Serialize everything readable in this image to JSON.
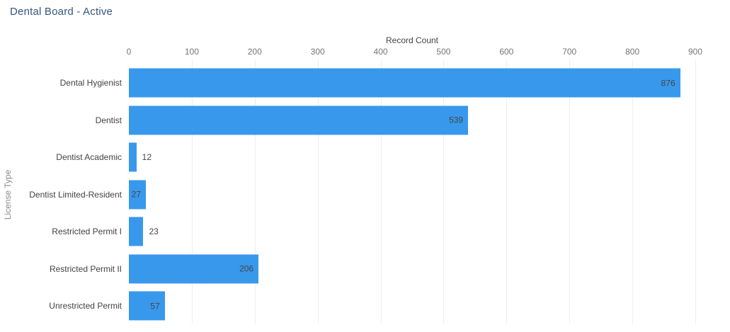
{
  "title": "Dental Board - Active",
  "chart_data": {
    "type": "bar",
    "orientation": "horizontal",
    "title": "Dental Board - Active",
    "xlabel": "Record Count",
    "ylabel": "License Type",
    "categories": [
      "Dental Hygienist",
      "Dentist",
      "Dentist Academic",
      "Dentist Limited-Resident",
      "Restricted Permit I",
      "Restricted Permit II",
      "Unrestricted Permit"
    ],
    "values": [
      876,
      539,
      12,
      27,
      23,
      206,
      57
    ],
    "xlim": [
      0,
      900
    ],
    "xticks": [
      0,
      100,
      200,
      300,
      400,
      500,
      600,
      700,
      800,
      900
    ],
    "grid": "vertical-only",
    "legend": "none",
    "bar_color": "#3898EC",
    "title_color": "#33567E",
    "tick_label_color": "#757575",
    "axis_title_color": "#424242"
  }
}
